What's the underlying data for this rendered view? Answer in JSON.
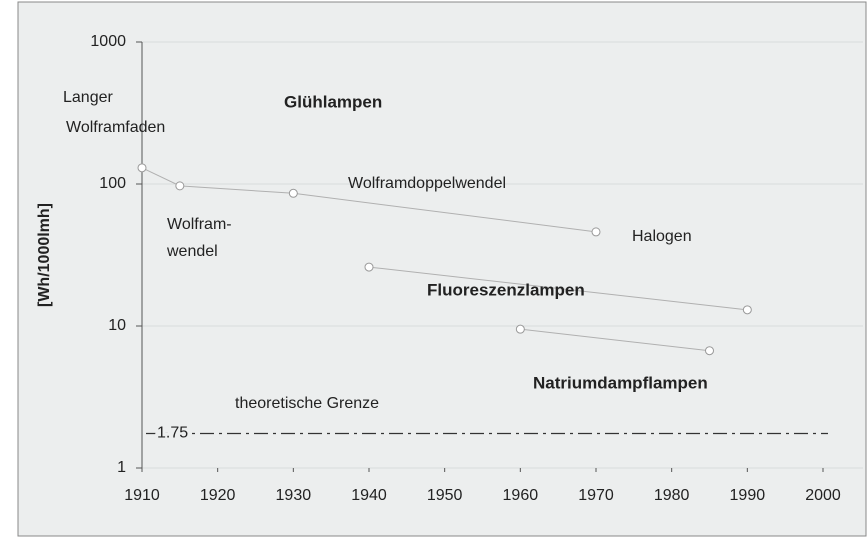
{
  "chart_data": {
    "type": "line",
    "ylabel": "[Wh/1000lmh]",
    "x_is_numeric": true,
    "xlim": [
      1910,
      2000
    ],
    "xticks": [
      1910,
      1920,
      1930,
      1940,
      1950,
      1960,
      1970,
      1980,
      1990,
      2000
    ],
    "ylim": [
      1,
      1000
    ],
    "yticks": [
      1,
      10,
      100,
      1000
    ],
    "log_y": true,
    "grid": true,
    "series": [
      {
        "name": "Glühlampen",
        "color": "#b0b0b0",
        "x": [
          1910,
          1915,
          1930,
          1970
        ],
        "values": [
          130,
          97,
          86,
          46
        ]
      },
      {
        "name": "Fluoreszenzlampen",
        "color": "#b0b0b0",
        "x": [
          1940,
          1990
        ],
        "values": [
          26,
          13
        ]
      },
      {
        "name": "Natriumdampflampen",
        "color": "#b0b0b0",
        "x": [
          1960,
          1985
        ],
        "values": [
          9.5,
          6.7
        ]
      }
    ],
    "reference_line": {
      "value": 1.75,
      "color": "#333333"
    },
    "annotations": [
      "Langer",
      "Wolframfaden",
      "Wolframdoppelwendel",
      "Wolfram-",
      "wendel",
      "Halogen",
      "theoretische Grenze"
    ]
  }
}
